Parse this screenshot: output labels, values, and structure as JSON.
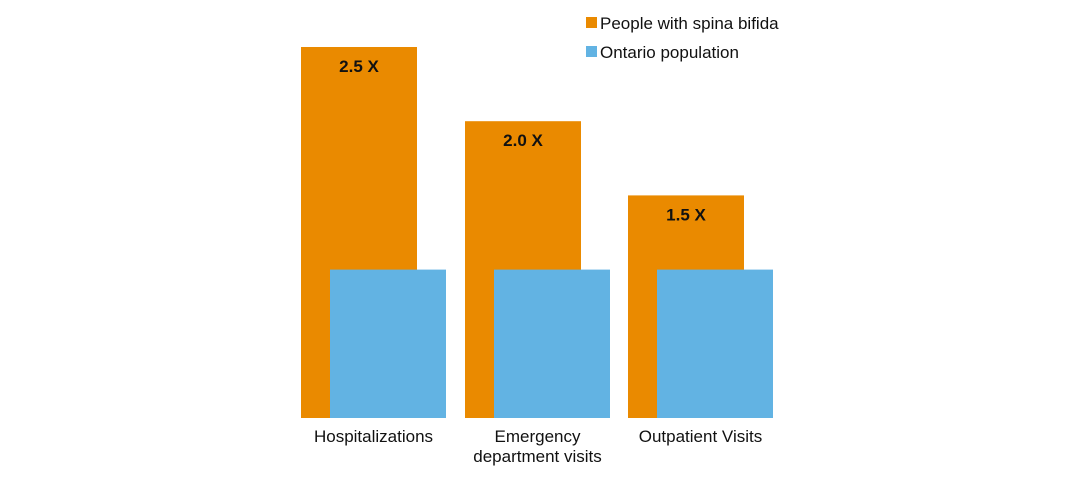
{
  "chart_data": {
    "type": "bar",
    "title": "",
    "xlabel": "",
    "ylabel": "",
    "ylim": [
      0,
      2.5
    ],
    "grid": false,
    "legend_position": "top-right",
    "categories": [
      [
        "Hospitalizations"
      ],
      [
        "Emergency",
        "department visits"
      ],
      [
        "Outpatient Visits"
      ]
    ],
    "series": [
      {
        "name": "People with spina bifida",
        "color": "#EA8A00",
        "values": [
          2.5,
          2.0,
          1.5
        ],
        "data_labels": [
          "2.5 X",
          "2.0 X",
          "1.5 X"
        ]
      },
      {
        "name": "Ontario population",
        "color": "#62B3E3",
        "values": [
          1.0,
          1.0,
          1.0
        ]
      }
    ]
  }
}
